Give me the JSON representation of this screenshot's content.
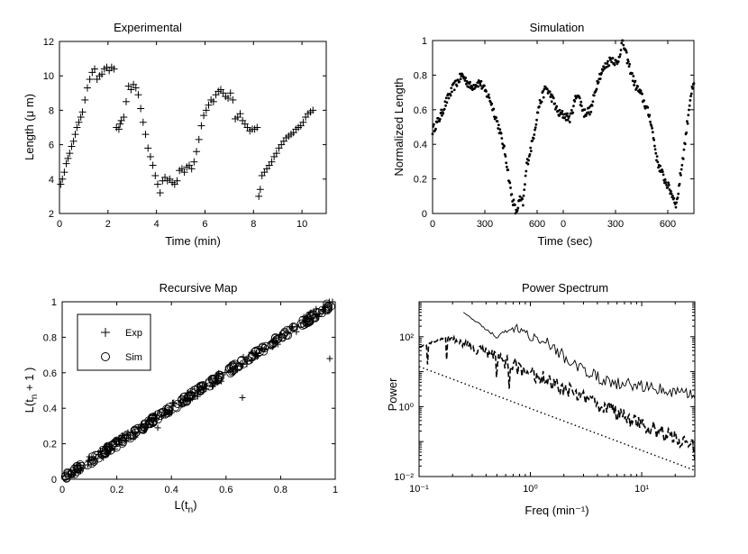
{
  "chart_data": [
    {
      "type": "scatter",
      "title": "Experimental",
      "xlabel": "Time (min)",
      "ylabel": "Length (μ m)",
      "xlim": [
        0,
        11
      ],
      "ylim": [
        2,
        12
      ],
      "xticks": [
        "0",
        "2",
        "4",
        "6",
        "8",
        "10"
      ],
      "yticks": [
        "2",
        "4",
        "6",
        "8",
        "10",
        "12"
      ],
      "marker": "plus",
      "series": [
        {
          "name": "Length",
          "x": [
            0.05,
            0.12,
            0.2,
            0.28,
            0.35,
            0.42,
            0.5,
            0.58,
            0.65,
            0.72,
            0.8,
            0.88,
            0.95,
            1.05,
            1.15,
            1.25,
            1.35,
            1.45,
            1.55,
            1.65,
            1.75,
            1.85,
            1.95,
            2.05,
            2.15,
            2.25,
            2.35,
            2.45,
            2.5,
            2.55,
            2.65,
            2.75,
            2.85,
            2.95,
            3.05,
            3.15,
            3.25,
            3.35,
            3.45,
            3.55,
            3.65,
            3.75,
            3.85,
            3.95,
            4.05,
            4.15,
            4.25,
            4.35,
            4.45,
            4.55,
            4.65,
            4.75,
            4.85,
            4.95,
            5.05,
            5.15,
            5.25,
            5.35,
            5.45,
            5.55,
            5.65,
            5.75,
            5.85,
            5.95,
            6.05,
            6.15,
            6.25,
            6.35,
            6.45,
            6.55,
            6.65,
            6.75,
            6.85,
            6.95,
            7.05,
            7.15,
            7.25,
            7.35,
            7.45,
            7.55,
            7.65,
            7.75,
            7.85,
            7.95,
            8.05,
            8.15,
            8.22,
            8.28,
            8.35,
            8.45,
            8.55,
            8.65,
            8.75,
            8.85,
            8.95,
            9.05,
            9.15,
            9.25,
            9.35,
            9.45,
            9.55,
            9.65,
            9.75,
            9.85,
            9.95,
            10.05,
            10.15,
            10.25,
            10.35,
            10.45
          ],
          "y": [
            3.7,
            4.0,
            4.4,
            4.9,
            5.2,
            5.5,
            5.9,
            6.2,
            6.6,
            7.0,
            7.3,
            7.6,
            7.9,
            8.6,
            9.3,
            9.8,
            10.2,
            10.4,
            9.8,
            10.0,
            10.1,
            10.4,
            10.5,
            10.3,
            10.5,
            10.4,
            7.0,
            6.9,
            7.2,
            7.4,
            7.6,
            8.5,
            9.4,
            9.2,
            9.5,
            9.3,
            8.9,
            8.1,
            7.3,
            6.6,
            5.8,
            5.3,
            4.8,
            4.2,
            3.7,
            3.2,
            3.9,
            4.1,
            3.9,
            4.0,
            3.8,
            3.7,
            3.9,
            4.5,
            4.6,
            4.4,
            4.7,
            4.8,
            4.6,
            5.0,
            5.6,
            6.3,
            7.1,
            7.7,
            8.0,
            8.3,
            8.6,
            8.5,
            8.9,
            9.1,
            9.2,
            9.0,
            8.8,
            8.7,
            9.0,
            8.6,
            7.5,
            7.6,
            7.8,
            7.4,
            7.2,
            7.0,
            6.8,
            6.9,
            6.9,
            7.0,
            3.0,
            3.4,
            4.2,
            4.4,
            4.6,
            4.8,
            5.0,
            5.3,
            5.5,
            5.8,
            6.0,
            6.2,
            6.4,
            6.5,
            6.6,
            6.7,
            6.9,
            7.0,
            7.1,
            7.3,
            7.6,
            7.8,
            7.9,
            8.0
          ]
        }
      ]
    },
    {
      "type": "scatter",
      "title": "Simulation",
      "xlabel": "Time (sec)",
      "ylabel": "Normalized Length",
      "xlim": [
        0,
        1500
      ],
      "ylim": [
        0,
        1
      ],
      "xtick_values": [
        0,
        300,
        600,
        750,
        1050,
        1350
      ],
      "xticks": [
        "0",
        "300",
        "600",
        "0",
        "300",
        "600"
      ],
      "ytick_values": [
        0,
        0.2,
        0.4,
        0.6,
        0.8,
        1
      ],
      "yticks": [
        "0",
        "0.2",
        "0.4",
        "0.6",
        "0.8",
        "1"
      ],
      "marker": "dot",
      "keyframes": [
        {
          "t": 0,
          "v": 0.48
        },
        {
          "t": 40,
          "v": 0.55
        },
        {
          "t": 80,
          "v": 0.65
        },
        {
          "t": 120,
          "v": 0.73
        },
        {
          "t": 170,
          "v": 0.8
        },
        {
          "t": 220,
          "v": 0.73
        },
        {
          "t": 270,
          "v": 0.76
        },
        {
          "t": 330,
          "v": 0.66
        },
        {
          "t": 380,
          "v": 0.5
        },
        {
          "t": 420,
          "v": 0.33
        },
        {
          "t": 450,
          "v": 0.12
        },
        {
          "t": 480,
          "v": 0.0
        },
        {
          "t": 500,
          "v": 0.08
        },
        {
          "t": 520,
          "v": 0.06
        },
        {
          "t": 540,
          "v": 0.28
        },
        {
          "t": 570,
          "v": 0.4
        },
        {
          "t": 610,
          "v": 0.62
        },
        {
          "t": 650,
          "v": 0.73
        },
        {
          "t": 690,
          "v": 0.66
        },
        {
          "t": 720,
          "v": 0.58
        },
        {
          "t": 750,
          "v": 0.57
        },
        {
          "t": 790,
          "v": 0.55
        },
        {
          "t": 830,
          "v": 0.7
        },
        {
          "t": 870,
          "v": 0.58
        },
        {
          "t": 910,
          "v": 0.6
        },
        {
          "t": 950,
          "v": 0.78
        },
        {
          "t": 990,
          "v": 0.85
        },
        {
          "t": 1030,
          "v": 0.9
        },
        {
          "t": 1060,
          "v": 0.86
        },
        {
          "t": 1090,
          "v": 1.0
        },
        {
          "t": 1120,
          "v": 0.88
        },
        {
          "t": 1160,
          "v": 0.75
        },
        {
          "t": 1200,
          "v": 0.68
        },
        {
          "t": 1250,
          "v": 0.55
        },
        {
          "t": 1290,
          "v": 0.3
        },
        {
          "t": 1330,
          "v": 0.2
        },
        {
          "t": 1370,
          "v": 0.12
        },
        {
          "t": 1400,
          "v": 0.05
        },
        {
          "t": 1420,
          "v": 0.2
        },
        {
          "t": 1450,
          "v": 0.42
        },
        {
          "t": 1480,
          "v": 0.68
        },
        {
          "t": 1500,
          "v": 0.74
        }
      ],
      "series": [
        {
          "name": "Normalized Length",
          "points": 420
        }
      ]
    },
    {
      "type": "scatter",
      "title": "Recursive Map",
      "xlabel": "L(t_n)",
      "ylabel": "L(t_n + 1)",
      "xlim": [
        0,
        1
      ],
      "ylim": [
        0,
        1
      ],
      "xtick_values": [
        0,
        0.2,
        0.4,
        0.6,
        0.8,
        1
      ],
      "xticks": [
        "0",
        "0.2",
        "0.4",
        "0.6",
        "0.8",
        "1"
      ],
      "ytick_values": [
        0,
        0.2,
        0.4,
        0.6,
        0.8,
        1
      ],
      "yticks": [
        "0",
        "0.2",
        "0.4",
        "0.6",
        "0.8",
        "1"
      ],
      "legend": "top-left",
      "series": [
        {
          "name": "Exp",
          "marker": "plus",
          "relation": "y ≈ x",
          "points": 130,
          "outliers": [
            [
              0.66,
              0.46
            ],
            [
              0.98,
              0.68
            ],
            [
              0.35,
              0.29
            ]
          ]
        },
        {
          "name": "Sim",
          "marker": "circle",
          "relation": "y ≈ x",
          "points": 240
        }
      ],
      "legend_labels": {
        "exp": "Exp",
        "sim": "Sim"
      }
    },
    {
      "type": "line",
      "title": "Power Spectrum",
      "xlabel": "Freq (min⁻¹)",
      "ylabel": "Power",
      "xscale": "log",
      "yscale": "log",
      "xlim": [
        0.1,
        30
      ],
      "ylim": [
        0.01,
        1000
      ],
      "xticks": [
        "10⁻¹",
        "10⁰",
        "10¹"
      ],
      "xtick_values": [
        0.1,
        1,
        10
      ],
      "yticks": [
        "10⁻²",
        "10⁰",
        "10²"
      ],
      "ytick_values": [
        0.01,
        1,
        100
      ],
      "series": [
        {
          "name": "Solid",
          "style": "solid",
          "keyframes": [
            [
              0.25,
              500
            ],
            [
              0.5,
              100
            ],
            [
              0.75,
              180
            ],
            [
              1.0,
              100
            ],
            [
              1.5,
              60
            ],
            [
              2.5,
              15
            ],
            [
              5,
              5
            ],
            [
              10,
              4
            ],
            [
              20,
              2.5
            ],
            [
              30,
              2
            ]
          ]
        },
        {
          "name": "Dashed",
          "style": "dashed",
          "keyframes": [
            [
              0.1,
              50
            ],
            [
              0.18,
              100
            ],
            [
              0.3,
              50
            ],
            [
              0.6,
              20
            ],
            [
              1.5,
              5
            ],
            [
              4,
              1.2
            ],
            [
              10,
              0.3
            ],
            [
              30,
              0.08
            ]
          ]
        },
        {
          "name": "Dotted",
          "style": "dotted",
          "keyframes": [
            [
              0.1,
              14
            ],
            [
              30,
              0.015
            ]
          ]
        }
      ]
    }
  ]
}
